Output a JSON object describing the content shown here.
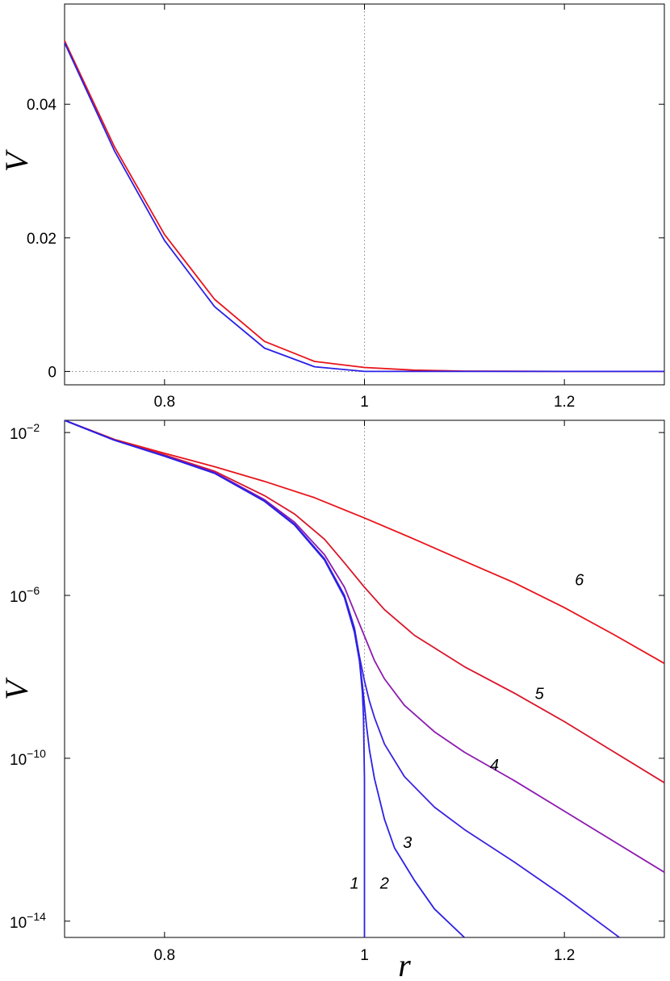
{
  "chart_data": [
    {
      "type": "line",
      "xlabel": "",
      "ylabel": "V",
      "xlim": [
        0.7,
        1.3
      ],
      "ylim": [
        -0.002,
        0.055
      ],
      "y_scale": "linear",
      "x_ticks": [
        0.8,
        1,
        1.2
      ],
      "x_tick_labels": [
        "0.8",
        "1",
        "1.2"
      ],
      "y_ticks": [
        0,
        0.02,
        0.04
      ],
      "y_tick_labels": [
        "0",
        "0.02",
        "0.04"
      ],
      "reference_lines": {
        "vertical_x": 1,
        "horizontal_y": 0,
        "style": "dotted"
      },
      "grid": false,
      "series": [
        {
          "color": "#e8141b",
          "x": [
            0.7,
            0.75,
            0.8,
            0.85,
            0.9,
            0.95,
            1.0,
            1.05,
            1.1,
            1.2,
            1.3
          ],
          "y": [
            0.0495,
            0.0336,
            0.0205,
            0.0108,
            0.0045,
            0.0015,
            0.0006,
            0.0002,
            5e-05,
            5e-06,
            5e-07
          ]
        },
        {
          "color": "#2b20e6",
          "x": [
            0.7,
            0.75,
            0.8,
            0.85,
            0.9,
            0.95,
            1.0,
            1.05,
            1.1,
            1.2,
            1.3
          ],
          "y": [
            0.0492,
            0.033,
            0.0196,
            0.0097,
            0.0035,
            0.0007,
            0.0,
            0.0,
            0.0,
            0.0,
            0.0
          ]
        }
      ]
    },
    {
      "type": "line",
      "xlabel": "r",
      "ylabel": "V",
      "xlim": [
        0.7,
        1.3
      ],
      "ylim_log10": [
        -14.4,
        -1.7
      ],
      "y_scale": "log",
      "x_ticks": [
        0.8,
        1,
        1.2
      ],
      "x_tick_labels": [
        "0.8",
        "1",
        "1.2"
      ],
      "y_ticks_log10": [
        -2,
        -6,
        -10,
        -14
      ],
      "y_tick_labels": [
        {
          "base": "10",
          "exp": "−2"
        },
        {
          "base": "10",
          "exp": "−6"
        },
        {
          "base": "10",
          "exp": "−10"
        },
        {
          "base": "10",
          "exp": "−14"
        }
      ],
      "reference_lines": {
        "vertical_x": 1,
        "style": "dotted"
      },
      "grid": false,
      "series": [
        {
          "label": "6",
          "color": "#e8141b",
          "label_at": [
            1.215,
            -5.75
          ],
          "x": [
            0.7,
            0.75,
            0.8,
            0.85,
            0.9,
            0.95,
            1.0,
            1.05,
            1.1,
            1.15,
            1.2,
            1.25,
            1.3
          ],
          "log10_y": [
            -1.7,
            -2.17,
            -2.51,
            -2.84,
            -3.2,
            -3.6,
            -4.1,
            -4.62,
            -5.16,
            -5.69,
            -6.3,
            -6.97,
            -7.67
          ]
        },
        {
          "label": "5",
          "color": "#d9162b",
          "label_at": [
            1.175,
            -8.55
          ],
          "x": [
            0.7,
            0.75,
            0.8,
            0.85,
            0.9,
            0.93,
            0.96,
            0.98,
            1.0,
            1.02,
            1.05,
            1.1,
            1.15,
            1.2,
            1.25,
            1.3
          ],
          "log10_y": [
            -1.7,
            -2.18,
            -2.55,
            -2.95,
            -3.55,
            -4.0,
            -4.62,
            -5.2,
            -5.8,
            -6.35,
            -6.98,
            -7.75,
            -8.4,
            -9.1,
            -9.85,
            -10.6
          ]
        },
        {
          "label": "4",
          "color": "#8e1ab0",
          "label_at": [
            1.13,
            -10.3
          ],
          "x": [
            0.7,
            0.75,
            0.8,
            0.85,
            0.9,
            0.93,
            0.96,
            0.98,
            0.99,
            1.0,
            1.01,
            1.02,
            1.04,
            1.07,
            1.1,
            1.15,
            1.2,
            1.25,
            1.3
          ],
          "log10_y": [
            -1.7,
            -2.19,
            -2.57,
            -2.98,
            -3.65,
            -4.2,
            -5.0,
            -5.8,
            -6.4,
            -7.0,
            -7.6,
            -8.05,
            -8.7,
            -9.35,
            -9.85,
            -10.55,
            -11.3,
            -12.05,
            -12.8
          ]
        },
        {
          "label": "3",
          "color": "#3a22e0",
          "label_at": [
            1.043,
            -12.2
          ],
          "x": [
            0.7,
            0.75,
            0.8,
            0.85,
            0.9,
            0.93,
            0.96,
            0.98,
            0.99,
            0.995,
            1.0,
            1.005,
            1.01,
            1.02,
            1.04,
            1.07,
            1.1,
            1.15,
            1.2,
            1.255
          ],
          "log10_y": [
            -1.7,
            -2.19,
            -2.58,
            -3.0,
            -3.68,
            -4.25,
            -5.1,
            -6.0,
            -6.8,
            -7.5,
            -8.1,
            -8.6,
            -9.0,
            -9.65,
            -10.45,
            -11.2,
            -11.75,
            -12.55,
            -13.4,
            -14.4
          ]
        },
        {
          "label": "2",
          "color": "#2b20e6",
          "label_at": [
            1.02,
            -13.2
          ],
          "x": [
            0.7,
            0.75,
            0.8,
            0.85,
            0.9,
            0.93,
            0.96,
            0.98,
            0.99,
            0.995,
            0.998,
            1.0,
            1.002,
            1.005,
            1.01,
            1.02,
            1.03,
            1.05,
            1.07,
            1.1
          ],
          "log10_y": [
            -1.7,
            -2.19,
            -2.58,
            -3.0,
            -3.69,
            -4.27,
            -5.13,
            -6.05,
            -6.9,
            -7.6,
            -8.2,
            -8.7,
            -9.2,
            -9.8,
            -10.5,
            -11.5,
            -12.2,
            -13.0,
            -13.7,
            -14.4
          ]
        },
        {
          "label": "1",
          "color": "#2b20e6",
          "label_at": [
            0.99,
            -13.2
          ],
          "x": [
            0.7,
            0.75,
            0.8,
            0.85,
            0.9,
            0.93,
            0.96,
            0.98,
            0.99,
            0.995,
            0.998,
            0.999,
            1.0,
            1.0
          ],
          "log10_y": [
            -1.7,
            -2.19,
            -2.58,
            -3.0,
            -3.69,
            -4.27,
            -5.13,
            -6.05,
            -6.9,
            -7.6,
            -8.4,
            -9.0,
            -10.5,
            -14.4
          ]
        }
      ]
    }
  ]
}
